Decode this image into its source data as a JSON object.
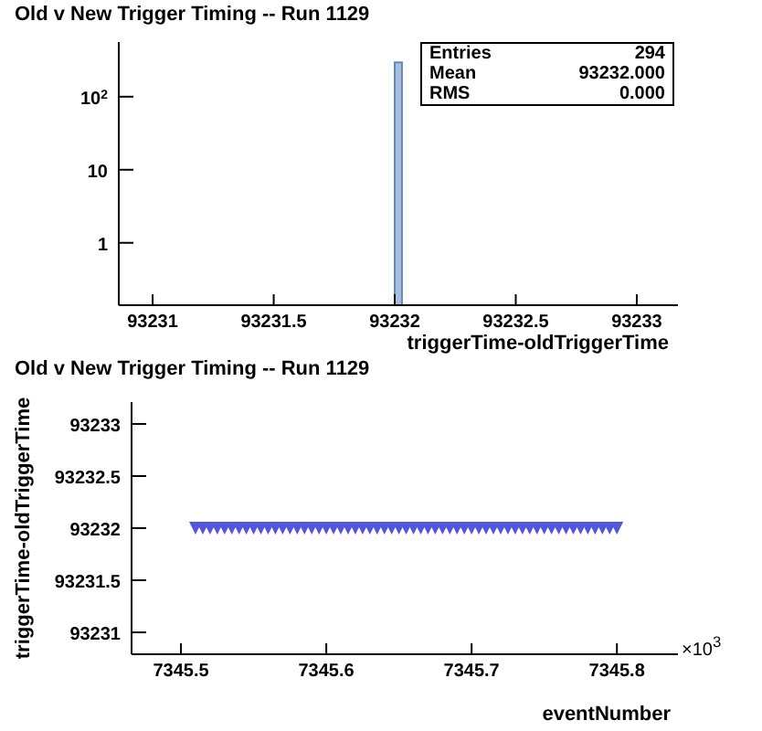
{
  "chart_data": [
    {
      "type": "histogram",
      "title": "Old v New Trigger Timing -- Run 1129",
      "xlabel": "triggerTime-oldTriggerTime",
      "bins": [
        93232.0,
        93232.03
      ],
      "values": [
        294
      ],
      "color": "#a8c0e0",
      "xlim": [
        93230.86,
        93233.17
      ],
      "xticks": [
        93231,
        93231.5,
        93232,
        93232.5,
        93233
      ],
      "ylim": [
        0.14,
        560
      ],
      "yticks": [
        {
          "value": 1,
          "label": "1"
        },
        {
          "value": 10,
          "label": "10"
        },
        {
          "value": 100,
          "label": "10$^{2}$"
        }
      ],
      "log": "y",
      "grid": false,
      "legend": false,
      "annotations": [
        "Entries",
        "294",
        "Mean",
        "93232.000",
        "RMS",
        "0.000"
      ]
    },
    {
      "type": "scatter",
      "title": "Old v New Trigger Timing -- Run 1129",
      "xlabel": "eventNumber",
      "ylabel": "triggerTime-oldTriggerTime",
      "marker": "triangle",
      "grid": false,
      "legend": false,
      "x": [
        7345.51,
        7345.515,
        7345.52,
        7345.525,
        7345.53,
        7345.535,
        7345.54,
        7345.545,
        7345.55,
        7345.555,
        7345.56,
        7345.565,
        7345.57,
        7345.575,
        7345.58,
        7345.585,
        7345.59,
        7345.595,
        7345.6,
        7345.605,
        7345.61,
        7345.615,
        7345.62,
        7345.625,
        7345.63,
        7345.635,
        7345.64,
        7345.645,
        7345.65,
        7345.655,
        7345.66,
        7345.665,
        7345.67,
        7345.675,
        7345.68,
        7345.685,
        7345.69,
        7345.695,
        7345.7,
        7345.705,
        7345.71,
        7345.715,
        7345.72,
        7345.725,
        7345.73,
        7345.735,
        7345.74,
        7345.745,
        7345.75,
        7345.755,
        7345.76,
        7345.765,
        7345.77,
        7345.775,
        7345.78,
        7345.785,
        7345.79,
        7345.795,
        7345.8
      ],
      "series": [
        {
          "color": "#5555dd",
          "values": [
            93232,
            93232,
            93232,
            93232,
            93232,
            93232,
            93232,
            93232,
            93232,
            93232,
            93232,
            93232,
            93232,
            93232,
            93232,
            93232,
            93232,
            93232,
            93232,
            93232,
            93232,
            93232,
            93232,
            93232,
            93232,
            93232,
            93232,
            93232,
            93232,
            93232,
            93232,
            93232,
            93232,
            93232,
            93232,
            93232,
            93232,
            93232,
            93232,
            93232,
            93232,
            93232,
            93232,
            93232,
            93232,
            93232,
            93232,
            93232,
            93232,
            93232,
            93232,
            93232,
            93232,
            93232,
            93232,
            93232,
            93232,
            93232,
            93232
          ]
        }
      ],
      "xlim": [
        7345.466,
        7345.842
      ],
      "xticks": [
        7345.5,
        7345.6,
        7345.7,
        7345.8
      ],
      "ylim": [
        93230.79,
        93233.21
      ],
      "yticks": [
        93231,
        93231.5,
        93232,
        93232.5,
        93233
      ],
      "annotations": [
        "×10$^{3}$"
      ]
    }
  ]
}
